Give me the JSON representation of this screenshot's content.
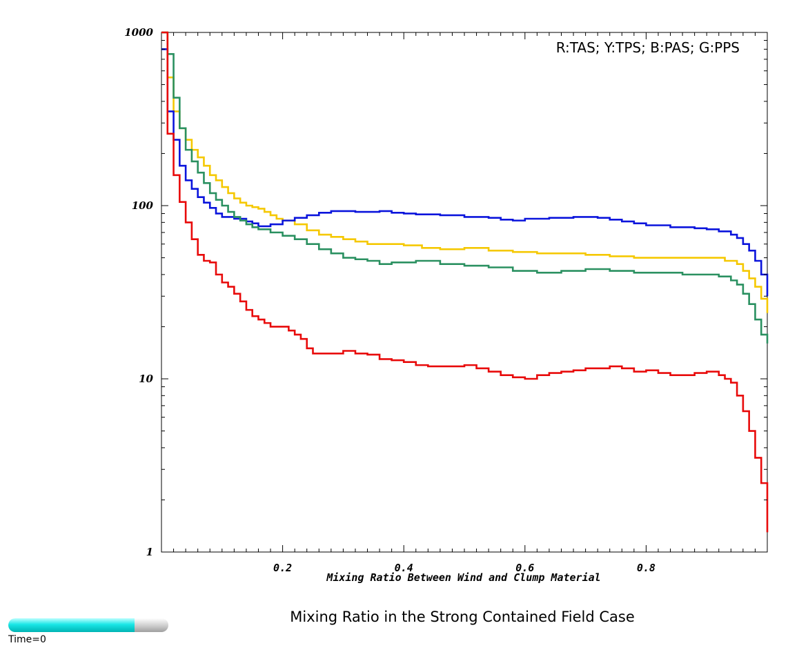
{
  "chart_data": {
    "type": "line",
    "step": true,
    "title": "Mixing Ratio in the Strong Contained Field Case",
    "xlabel": "Mixing Ratio Between Wind and Clump Material",
    "ylabel": "",
    "annotation": "R:TAS; Y:TPS; B:PAS; G:PPS",
    "xlim": [
      0.0,
      1.0
    ],
    "ylim": [
      1,
      1000
    ],
    "yscale": "log",
    "x_ticks": [
      0.2,
      0.4,
      0.6,
      0.8
    ],
    "x_tick_labels": [
      "0.2",
      "0.4",
      "0.6",
      "0.8"
    ],
    "y_ticks": [
      1,
      10,
      100,
      1000
    ],
    "y_tick_labels": [
      "1",
      "10",
      "100",
      "1000"
    ],
    "grid": false,
    "series": [
      {
        "color": "#f5c800",
        "points": [
          [
            0.0,
            1000
          ],
          [
            0.01,
            550
          ],
          [
            0.02,
            350
          ],
          [
            0.03,
            280
          ],
          [
            0.04,
            240
          ],
          [
            0.05,
            210
          ],
          [
            0.06,
            190
          ],
          [
            0.07,
            170
          ],
          [
            0.08,
            150
          ],
          [
            0.09,
            140
          ],
          [
            0.1,
            128
          ],
          [
            0.11,
            118
          ],
          [
            0.12,
            110
          ],
          [
            0.13,
            104
          ],
          [
            0.14,
            100
          ],
          [
            0.15,
            98
          ],
          [
            0.16,
            96
          ],
          [
            0.17,
            92
          ],
          [
            0.18,
            88
          ],
          [
            0.19,
            84
          ],
          [
            0.2,
            82
          ],
          [
            0.22,
            78
          ],
          [
            0.24,
            72
          ],
          [
            0.26,
            68
          ],
          [
            0.28,
            66
          ],
          [
            0.3,
            64
          ],
          [
            0.32,
            62
          ],
          [
            0.34,
            60
          ],
          [
            0.38,
            60
          ],
          [
            0.4,
            59
          ],
          [
            0.43,
            57
          ],
          [
            0.46,
            56
          ],
          [
            0.5,
            57
          ],
          [
            0.54,
            55
          ],
          [
            0.58,
            54
          ],
          [
            0.62,
            53
          ],
          [
            0.66,
            53
          ],
          [
            0.7,
            52
          ],
          [
            0.74,
            51
          ],
          [
            0.78,
            50
          ],
          [
            0.82,
            50
          ],
          [
            0.86,
            50
          ],
          [
            0.9,
            50
          ],
          [
            0.93,
            48
          ],
          [
            0.95,
            46
          ],
          [
            0.96,
            42
          ],
          [
            0.97,
            38
          ],
          [
            0.98,
            34
          ],
          [
            0.99,
            29
          ],
          [
            1.0,
            24
          ]
        ]
      },
      {
        "color": "#0a14dc",
        "points": [
          [
            0.0,
            800
          ],
          [
            0.01,
            350
          ],
          [
            0.02,
            240
          ],
          [
            0.03,
            170
          ],
          [
            0.04,
            140
          ],
          [
            0.05,
            125
          ],
          [
            0.06,
            112
          ],
          [
            0.07,
            104
          ],
          [
            0.08,
            97
          ],
          [
            0.09,
            90
          ],
          [
            0.1,
            86
          ],
          [
            0.12,
            84
          ],
          [
            0.14,
            81
          ],
          [
            0.15,
            79
          ],
          [
            0.16,
            76
          ],
          [
            0.17,
            76
          ],
          [
            0.18,
            78
          ],
          [
            0.2,
            82
          ],
          [
            0.22,
            85
          ],
          [
            0.24,
            88
          ],
          [
            0.26,
            91
          ],
          [
            0.28,
            93
          ],
          [
            0.3,
            93
          ],
          [
            0.32,
            92
          ],
          [
            0.34,
            92
          ],
          [
            0.36,
            93
          ],
          [
            0.38,
            91
          ],
          [
            0.4,
            90
          ],
          [
            0.42,
            89
          ],
          [
            0.46,
            88
          ],
          [
            0.5,
            86
          ],
          [
            0.54,
            85
          ],
          [
            0.56,
            83
          ],
          [
            0.58,
            82
          ],
          [
            0.6,
            84
          ],
          [
            0.64,
            85
          ],
          [
            0.68,
            86
          ],
          [
            0.72,
            85
          ],
          [
            0.74,
            83
          ],
          [
            0.76,
            81
          ],
          [
            0.78,
            79
          ],
          [
            0.8,
            77
          ],
          [
            0.84,
            75
          ],
          [
            0.88,
            74
          ],
          [
            0.9,
            73
          ],
          [
            0.92,
            71
          ],
          [
            0.94,
            68
          ],
          [
            0.95,
            65
          ],
          [
            0.96,
            60
          ],
          [
            0.97,
            55
          ],
          [
            0.98,
            48
          ],
          [
            0.99,
            40
          ],
          [
            1.0,
            30
          ]
        ]
      },
      {
        "color": "#2a9060",
        "points": [
          [
            0.0,
            1000
          ],
          [
            0.01,
            750
          ],
          [
            0.02,
            420
          ],
          [
            0.03,
            280
          ],
          [
            0.04,
            210
          ],
          [
            0.05,
            180
          ],
          [
            0.06,
            155
          ],
          [
            0.07,
            135
          ],
          [
            0.08,
            118
          ],
          [
            0.09,
            108
          ],
          [
            0.1,
            100
          ],
          [
            0.11,
            92
          ],
          [
            0.12,
            86
          ],
          [
            0.13,
            82
          ],
          [
            0.14,
            78
          ],
          [
            0.15,
            75
          ],
          [
            0.16,
            73
          ],
          [
            0.18,
            70
          ],
          [
            0.2,
            67
          ],
          [
            0.22,
            64
          ],
          [
            0.24,
            60
          ],
          [
            0.26,
            56
          ],
          [
            0.28,
            53
          ],
          [
            0.3,
            50
          ],
          [
            0.32,
            49
          ],
          [
            0.34,
            48
          ],
          [
            0.36,
            46
          ],
          [
            0.38,
            47
          ],
          [
            0.4,
            47
          ],
          [
            0.42,
            48
          ],
          [
            0.46,
            46
          ],
          [
            0.5,
            45
          ],
          [
            0.54,
            44
          ],
          [
            0.58,
            42
          ],
          [
            0.62,
            41
          ],
          [
            0.66,
            42
          ],
          [
            0.7,
            43
          ],
          [
            0.74,
            42
          ],
          [
            0.78,
            41
          ],
          [
            0.82,
            41
          ],
          [
            0.86,
            40
          ],
          [
            0.9,
            40
          ],
          [
            0.92,
            39
          ],
          [
            0.94,
            37
          ],
          [
            0.95,
            35
          ],
          [
            0.96,
            31
          ],
          [
            0.97,
            27
          ],
          [
            0.98,
            22
          ],
          [
            0.99,
            18
          ],
          [
            1.0,
            16
          ]
        ]
      },
      {
        "color": "#e80a0a",
        "points": [
          [
            0.0,
            1000
          ],
          [
            0.01,
            260
          ],
          [
            0.02,
            150
          ],
          [
            0.03,
            105
          ],
          [
            0.04,
            80
          ],
          [
            0.05,
            64
          ],
          [
            0.06,
            52
          ],
          [
            0.07,
            48
          ],
          [
            0.08,
            47
          ],
          [
            0.09,
            40
          ],
          [
            0.1,
            36
          ],
          [
            0.11,
            34
          ],
          [
            0.12,
            31
          ],
          [
            0.13,
            28
          ],
          [
            0.14,
            25
          ],
          [
            0.15,
            23
          ],
          [
            0.16,
            22
          ],
          [
            0.17,
            21
          ],
          [
            0.18,
            20
          ],
          [
            0.2,
            20
          ],
          [
            0.21,
            19
          ],
          [
            0.22,
            18
          ],
          [
            0.23,
            17
          ],
          [
            0.24,
            15
          ],
          [
            0.25,
            14
          ],
          [
            0.28,
            14
          ],
          [
            0.3,
            14.5
          ],
          [
            0.32,
            14
          ],
          [
            0.34,
            13.8
          ],
          [
            0.36,
            13
          ],
          [
            0.38,
            12.8
          ],
          [
            0.4,
            12.5
          ],
          [
            0.42,
            12
          ],
          [
            0.44,
            11.8
          ],
          [
            0.46,
            11.8
          ],
          [
            0.5,
            12
          ],
          [
            0.52,
            11.5
          ],
          [
            0.54,
            11
          ],
          [
            0.56,
            10.5
          ],
          [
            0.58,
            10.2
          ],
          [
            0.6,
            10
          ],
          [
            0.62,
            10.5
          ],
          [
            0.64,
            10.8
          ],
          [
            0.66,
            11
          ],
          [
            0.68,
            11.2
          ],
          [
            0.7,
            11.5
          ],
          [
            0.72,
            11.5
          ],
          [
            0.74,
            11.8
          ],
          [
            0.76,
            11.5
          ],
          [
            0.78,
            11
          ],
          [
            0.8,
            11.2
          ],
          [
            0.82,
            10.8
          ],
          [
            0.84,
            10.5
          ],
          [
            0.86,
            10.5
          ],
          [
            0.88,
            10.8
          ],
          [
            0.9,
            11
          ],
          [
            0.92,
            10.5
          ],
          [
            0.93,
            10
          ],
          [
            0.94,
            9.5
          ],
          [
            0.95,
            8
          ],
          [
            0.96,
            6.5
          ],
          [
            0.97,
            5
          ],
          [
            0.98,
            3.5
          ],
          [
            0.99,
            2.5
          ],
          [
            1.0,
            1.3
          ]
        ]
      }
    ]
  },
  "time_slider": {
    "label": "Time=0",
    "fill_fraction": 0.79
  }
}
